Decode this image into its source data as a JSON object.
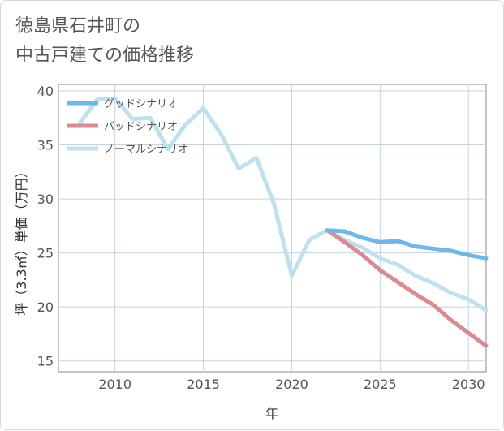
{
  "page": {
    "title_line1": "徳島県石井町の",
    "title_line2": "中古戸建ての価格推移"
  },
  "chart_data": {
    "type": "line",
    "xlabel": "年",
    "ylabel": "坪（3.3㎡）単価（万円）",
    "xlim": [
      2006.8,
      2031
    ],
    "ylim": [
      14,
      40.6
    ],
    "x_ticks": [
      2010,
      2015,
      2020,
      2025,
      2030
    ],
    "y_ticks": [
      15,
      20,
      25,
      30,
      35,
      40
    ],
    "grid": true,
    "legend_position": "top-left",
    "series": [
      {
        "name": "グッドシナリオ",
        "color": "#6cb8ec",
        "x": [
          2022,
          2023,
          2024,
          2025,
          2026,
          2027,
          2028,
          2029,
          2030,
          2031
        ],
        "y": [
          27.1,
          27.0,
          26.4,
          26.0,
          26.1,
          25.6,
          25.4,
          25.2,
          24.8,
          24.5
        ]
      },
      {
        "name": "バッドシナリオ",
        "color": "#dc8a92",
        "x": [
          2022,
          2023,
          2024,
          2025,
          2026,
          2027,
          2028,
          2029,
          2030,
          2031
        ],
        "y": [
          27.1,
          26.0,
          24.8,
          23.4,
          22.3,
          21.2,
          20.2,
          18.8,
          17.6,
          16.4
        ]
      },
      {
        "name": "ノーマルシナリオ",
        "color": "#bfe0ee",
        "x": [
          2008,
          2009,
          2010,
          2011,
          2012,
          2013,
          2014,
          2015,
          2016,
          2017,
          2018,
          2019,
          2020,
          2021,
          2022,
          2023,
          2024,
          2025,
          2026,
          2027,
          2028,
          2029,
          2030,
          2031
        ],
        "y": [
          37.0,
          39.2,
          39.3,
          37.4,
          37.5,
          34.6,
          36.9,
          38.4,
          36.0,
          32.8,
          33.8,
          29.5,
          22.9,
          26.2,
          27.1,
          26.2,
          25.5,
          24.5,
          23.9,
          22.9,
          22.2,
          21.3,
          20.7,
          19.7
        ]
      }
    ]
  }
}
